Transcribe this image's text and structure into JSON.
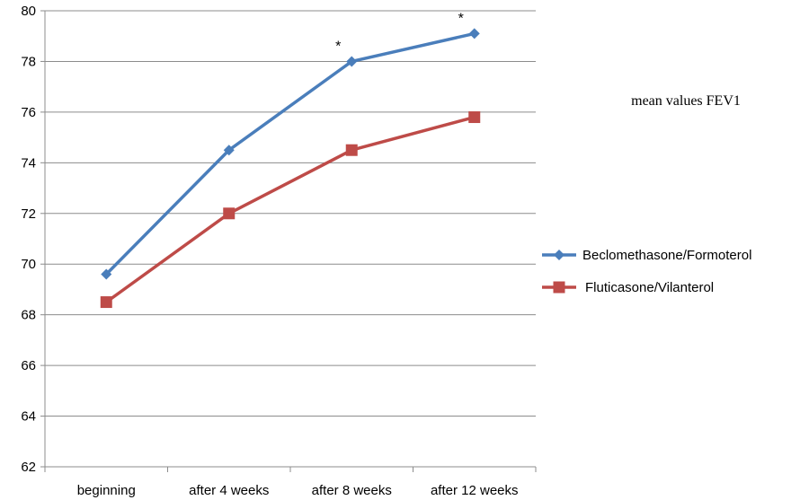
{
  "chart_data": {
    "type": "line",
    "title": "mean values FEV1",
    "categories": [
      "beginning",
      "after 4 weeks",
      "after 8 weeks",
      "after 12 weeks"
    ],
    "ylim": [
      62,
      80
    ],
    "yticks": [
      "62",
      "64",
      "66",
      "68",
      "70",
      "72",
      "74",
      "76",
      "78",
      "80"
    ],
    "grid": true,
    "legend_position": "right",
    "series": [
      {
        "name": "Beclomethasone/Formoterol",
        "values": [
          69.6,
          74.5,
          78.0,
          79.1
        ],
        "color": "#4a7ebb",
        "marker": "diamond"
      },
      {
        "name": "Fluticasone/Vilanterol",
        "values": [
          68.5,
          72.0,
          74.5,
          75.8
        ],
        "color": "#be4b48",
        "marker": "square"
      }
    ],
    "annotations": [
      {
        "text": "*",
        "category": "after 8 weeks",
        "y": 78.0
      },
      {
        "text": "*",
        "category": "after 12 weeks",
        "y": 79.1
      }
    ]
  }
}
